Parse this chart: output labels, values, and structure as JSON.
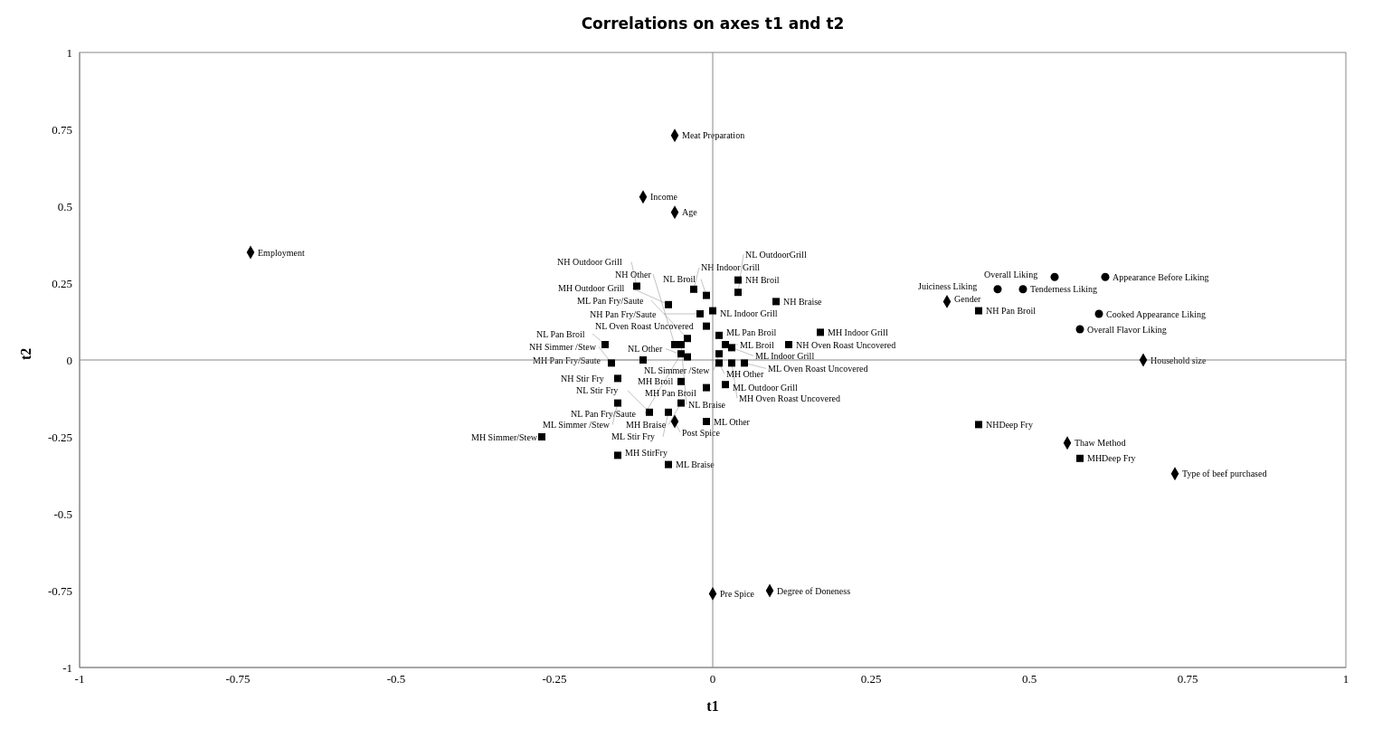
{
  "chart_data": {
    "type": "scatter",
    "title": "Correlations on axes t1 and t2",
    "xlabel": "t1",
    "ylabel": "t2",
    "xlim": [
      -1,
      1
    ],
    "xticks": [
      -1,
      -0.75,
      -0.5,
      -0.25,
      0,
      0.25,
      0.5,
      0.75,
      1
    ],
    "ylim": [
      -1,
      1
    ],
    "yticks": [
      -1,
      -0.75,
      -0.5,
      -0.25,
      0,
      0.25,
      0.5,
      0.75,
      1
    ],
    "legend": false,
    "series": [
      {
        "color": "#000000",
        "marker": "diamond",
        "x": [
          -0.06,
          -0.11,
          -0.06,
          -0.73,
          0.37,
          0.68,
          0.56,
          0.73,
          0.0,
          0.09,
          -0.06
        ],
        "values": [
          0.73,
          0.53,
          0.48,
          0.35,
          0.19,
          0.0,
          -0.27,
          -0.37,
          -0.76,
          -0.75,
          -0.2
        ]
      },
      {
        "color": "#000000",
        "marker": "circle",
        "x": [
          0.45,
          0.49,
          0.54,
          0.62,
          0.61,
          0.58
        ],
        "values": [
          0.23,
          0.23,
          0.27,
          0.27,
          0.15,
          0.1
        ]
      },
      {
        "color": "#000000",
        "marker": "square",
        "x": [
          -0.12,
          -0.03,
          -0.01,
          0.04,
          -0.07,
          0.04,
          -0.02,
          0.1,
          0.0,
          -0.01,
          -0.04,
          -0.05,
          0.01,
          0.17,
          0.02,
          0.12,
          -0.17,
          -0.06,
          0.03,
          -0.05,
          0.01,
          -0.11,
          0.01,
          -0.16,
          -0.04,
          0.03,
          0.02,
          -0.15,
          -0.05,
          0.05,
          -0.01,
          -0.15,
          -0.05,
          -0.01,
          -0.1,
          -0.27,
          -0.07,
          -0.15,
          -0.07,
          0.42,
          0.42,
          0.58
        ],
        "values": [
          0.24,
          0.23,
          0.21,
          0.26,
          0.18,
          0.22,
          0.15,
          0.19,
          0.16,
          0.11,
          0.07,
          0.05,
          0.08,
          0.09,
          0.05,
          0.05,
          0.05,
          0.05,
          0.04,
          0.02,
          0.02,
          0.0,
          -0.01,
          -0.01,
          0.01,
          -0.01,
          -0.08,
          -0.06,
          -0.07,
          -0.01,
          -0.09,
          -0.14,
          -0.14,
          -0.2,
          -0.17,
          -0.25,
          -0.17,
          -0.31,
          -0.34,
          0.16,
          -0.21,
          -0.32
        ]
      }
    ],
    "annotations": [
      {
        "text": "Meat Preparation",
        "x": -0.06,
        "y": 0.73
      },
      {
        "text": "Income",
        "x": -0.11,
        "y": 0.53
      },
      {
        "text": "Age",
        "x": -0.06,
        "y": 0.48
      },
      {
        "text": "Employment",
        "x": -0.73,
        "y": 0.35
      },
      {
        "text": "Gender",
        "x": 0.37,
        "y": 0.19
      },
      {
        "text": "Household size",
        "x": 0.68,
        "y": 0.0
      },
      {
        "text": "Thaw Method",
        "x": 0.56,
        "y": -0.27
      },
      {
        "text": "Type of beef purchased",
        "x": 0.73,
        "y": -0.37
      },
      {
        "text": "Pre Spice",
        "x": 0.0,
        "y": -0.76
      },
      {
        "text": "Degree of Doneness",
        "x": 0.09,
        "y": -0.75
      },
      {
        "text": "Post Spice",
        "x": -0.06,
        "y": -0.2
      },
      {
        "text": "Juiciness Liking",
        "x": 0.45,
        "y": 0.23
      },
      {
        "text": "Tenderness Liking",
        "x": 0.49,
        "y": 0.23
      },
      {
        "text": "Overall Liking",
        "x": 0.54,
        "y": 0.27
      },
      {
        "text": "Appearance Before Liking",
        "x": 0.62,
        "y": 0.27
      },
      {
        "text": "Cooked Appearance Liking",
        "x": 0.61,
        "y": 0.15
      },
      {
        "text": "Overall Flavor Liking",
        "x": 0.58,
        "y": 0.1
      },
      {
        "text": "NH Outdoor Grill",
        "x": -0.12,
        "y": 0.24
      },
      {
        "text": "NH Indoor Grill",
        "x": -0.03,
        "y": 0.23
      },
      {
        "text": "NL Broil",
        "x": -0.01,
        "y": 0.21
      },
      {
        "text": "NH Broil",
        "x": 0.04,
        "y": 0.26
      },
      {
        "text": "MH Outdoor Grill",
        "x": -0.07,
        "y": 0.18
      },
      {
        "text": "NL OutdoorGrill",
        "x": 0.04,
        "y": 0.22
      },
      {
        "text": "NH Pan Fry/Saute",
        "x": -0.02,
        "y": 0.15
      },
      {
        "text": "NH Braise",
        "x": 0.1,
        "y": 0.19
      },
      {
        "text": "NL Indoor Grill",
        "x": 0.0,
        "y": 0.16
      },
      {
        "text": "NL Oven Roast Uncovered",
        "x": -0.01,
        "y": 0.11
      },
      {
        "text": "ML Pan Fry/Saute",
        "x": -0.04,
        "y": 0.07
      },
      {
        "text": "NL Braise",
        "x": -0.05,
        "y": 0.05
      },
      {
        "text": "ML Pan Broil",
        "x": 0.01,
        "y": 0.08
      },
      {
        "text": "MH Indoor Grill",
        "x": 0.17,
        "y": 0.09
      },
      {
        "text": "ML Broil",
        "x": 0.02,
        "y": 0.05
      },
      {
        "text": "NH Oven Roast Uncovered",
        "x": 0.12,
        "y": 0.05
      },
      {
        "text": "NL Pan Broil",
        "x": -0.17,
        "y": 0.05
      },
      {
        "text": "NH Other",
        "x": -0.06,
        "y": 0.05
      },
      {
        "text": "ML Indoor Grill",
        "x": 0.03,
        "y": 0.04
      },
      {
        "text": "NL Pan Fry/Saute",
        "x": -0.05,
        "y": 0.02
      },
      {
        "text": "NL Simmer /Stew",
        "x": 0.01,
        "y": 0.02
      },
      {
        "text": "MH Pan Fry/Saute",
        "x": -0.11,
        "y": 0.0
      },
      {
        "text": "MH Other",
        "x": 0.01,
        "y": -0.01
      },
      {
        "text": "NH Simmer /Stew",
        "x": -0.16,
        "y": -0.01
      },
      {
        "text": "NL Other",
        "x": -0.04,
        "y": 0.01
      },
      {
        "text": "MH Oven Roast Uncovered",
        "x": 0.03,
        "y": -0.01
      },
      {
        "text": "ML Outdoor Grill",
        "x": 0.02,
        "y": -0.08
      },
      {
        "text": "NH Stir Fry",
        "x": -0.15,
        "y": -0.06
      },
      {
        "text": "MH Broil",
        "x": -0.05,
        "y": -0.07
      },
      {
        "text": "ML Oven Roast Uncovered",
        "x": 0.05,
        "y": -0.01
      },
      {
        "text": "MH Pan Broil",
        "x": -0.01,
        "y": -0.09
      },
      {
        "text": "ML Simmer /Stew",
        "x": -0.15,
        "y": -0.14
      },
      {
        "text": "MH Braise",
        "x": -0.05,
        "y": -0.14
      },
      {
        "text": "ML Other",
        "x": -0.01,
        "y": -0.2
      },
      {
        "text": "NL Stir Fry",
        "x": -0.1,
        "y": -0.17
      },
      {
        "text": "MH Simmer/Stew",
        "x": -0.27,
        "y": -0.25
      },
      {
        "text": "ML Stir Fry",
        "x": -0.07,
        "y": -0.17
      },
      {
        "text": "MH StirFry",
        "x": -0.15,
        "y": -0.31
      },
      {
        "text": "ML Braise",
        "x": -0.07,
        "y": -0.34
      },
      {
        "text": "NH Pan Broil",
        "x": 0.42,
        "y": 0.16
      },
      {
        "text": "NHDeep Fry",
        "x": 0.42,
        "y": -0.21
      },
      {
        "text": "MHDeep Fry",
        "x": 0.58,
        "y": -0.32
      }
    ]
  }
}
